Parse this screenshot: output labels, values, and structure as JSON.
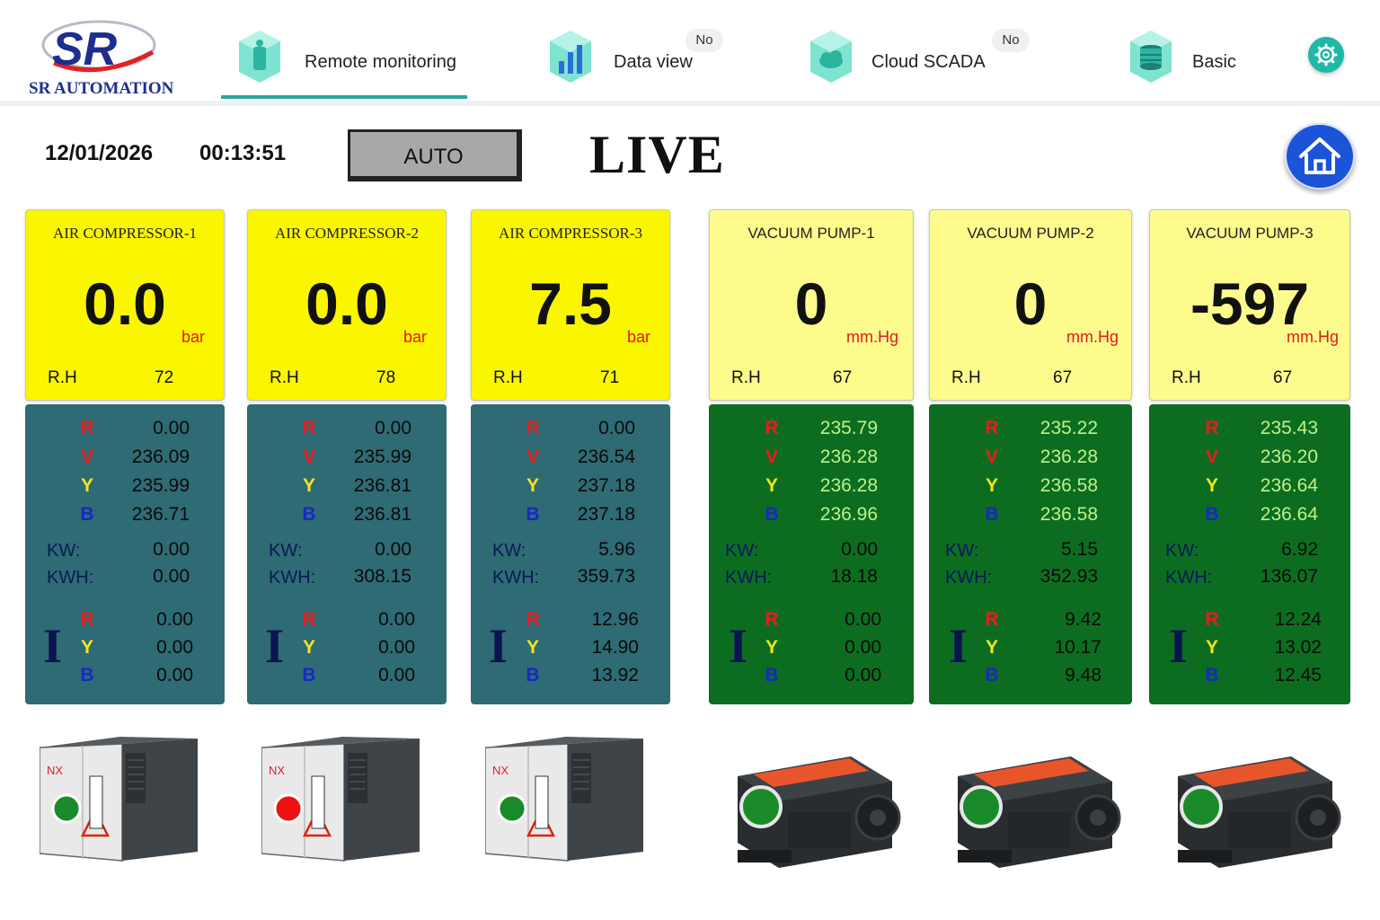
{
  "brand": {
    "name": "SR AUTOMATION",
    "logo_letters": "SR"
  },
  "nav": {
    "tabs": [
      {
        "label": "Remote monitoring",
        "badge": "",
        "icon": "remote-monitor-icon",
        "active": true
      },
      {
        "label": "Data view",
        "badge": "No",
        "icon": "data-chart-icon",
        "active": false
      },
      {
        "label": "Cloud SCADA",
        "badge": "No",
        "icon": "cloud-scada-icon",
        "active": false
      },
      {
        "label": "Basic",
        "badge": "",
        "icon": "database-icon",
        "active": false
      }
    ],
    "settings_icon": "gear-icon",
    "accent": "#2aa8a3"
  },
  "status": {
    "date": "12/01/2026",
    "time": "00:13:51",
    "mode": "AUTO",
    "live": "LIVE",
    "home_icon": "home-icon"
  },
  "colors": {
    "compressor_card": "#faf600",
    "pump_card": "#fdfb8c",
    "compressor_panel": "#2f6b74",
    "pump_panel": "#0c6d21",
    "running": "#1a8a2a",
    "stopped": "#ee1111"
  },
  "units": [
    {
      "title": "AIR COMPRESSOR-1",
      "value": "0.0",
      "unit": "bar",
      "rh_label": "R.H",
      "rh": "72",
      "v_label": "V",
      "volt": {
        "r": "0.00",
        "y": "236.09",
        "b": "235.99",
        "v": "236.71"
      },
      "kw_label": "KW:",
      "kw": "0.00",
      "kwh_label": "KWH:",
      "kwh": "0.00",
      "i_label": "I",
      "current": {
        "r": "0.00",
        "y": "0.00",
        "b": "0.00"
      },
      "running": true
    },
    {
      "title": "AIR COMPRESSOR-2",
      "value": "0.0",
      "unit": "bar",
      "rh_label": "R.H",
      "rh": "78",
      "v_label": "V",
      "volt": {
        "r": "0.00",
        "y": "235.99",
        "b": "236.81",
        "v": "236.81"
      },
      "kw_label": "KW:",
      "kw": "0.00",
      "kwh_label": "KWH:",
      "kwh": "308.15",
      "i_label": "I",
      "current": {
        "r": "0.00",
        "y": "0.00",
        "b": "0.00"
      },
      "running": false
    },
    {
      "title": "AIR COMPRESSOR-3",
      "value": "7.5",
      "unit": "bar",
      "rh_label": "R.H",
      "rh": "71",
      "v_label": "V",
      "volt": {
        "r": "0.00",
        "y": "236.54",
        "b": "237.18",
        "v": "237.18"
      },
      "kw_label": "KW:",
      "kw": "5.96",
      "kwh_label": "KWH:",
      "kwh": "359.73",
      "i_label": "I",
      "current": {
        "r": "12.96",
        "y": "14.90",
        "b": "13.92"
      },
      "running": true
    },
    {
      "title": "VACUUM PUMP-1",
      "value": "0",
      "unit": "mm.Hg",
      "rh_label": "R.H",
      "rh": "67",
      "v_label": "V",
      "volt": {
        "r": "235.79",
        "y": "236.28",
        "b": "236.28",
        "v": "236.96"
      },
      "kw_label": "KW:",
      "kw": "0.00",
      "kwh_label": "KWH:",
      "kwh": "18.18",
      "i_label": "I",
      "current": {
        "r": "0.00",
        "y": "0.00",
        "b": "0.00"
      },
      "running": true
    },
    {
      "title": "VACUUM PUMP-2",
      "value": "0",
      "unit": "mm.Hg",
      "rh_label": "R.H",
      "rh": "67",
      "v_label": "V",
      "volt": {
        "r": "235.22",
        "y": "236.28",
        "b": "236.58",
        "v": "236.58"
      },
      "kw_label": "KW:",
      "kw": "5.15",
      "kwh_label": "KWH:",
      "kwh": "352.93",
      "i_label": "I",
      "current": {
        "r": "9.42",
        "y": "10.17",
        "b": "9.48"
      },
      "running": true
    },
    {
      "title": "VACUUM PUMP-3",
      "value": "-597",
      "unit": "mm.Hg",
      "rh_label": "R.H",
      "rh": "67",
      "v_label": "V",
      "volt": {
        "r": "235.43",
        "y": "236.20",
        "b": "236.64",
        "v": "236.64"
      },
      "kw_label": "KW:",
      "kw": "6.92",
      "kwh_label": "KWH:",
      "kwh": "136.07",
      "i_label": "I",
      "current": {
        "r": "12.24",
        "y": "13.02",
        "b": "12.45"
      },
      "running": true
    }
  ],
  "phase_letters": {
    "r": "R",
    "y": "Y",
    "b": "B"
  },
  "machine_branding": {
    "compressor_logo": "NX"
  }
}
